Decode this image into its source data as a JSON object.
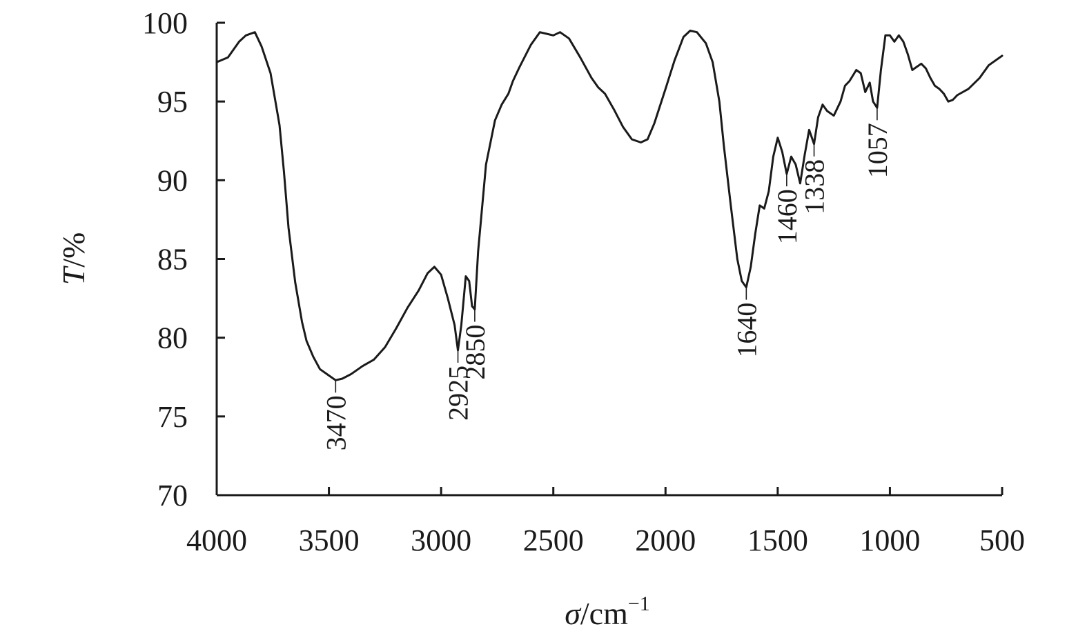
{
  "chart_data": {
    "type": "line",
    "title": "",
    "xlabel": {
      "symbol": "σ",
      "unit": "/cm",
      "exponent": "−1"
    },
    "ylabel": {
      "symbol": "T",
      "unit": "/%"
    },
    "xlim": [
      4000,
      500
    ],
    "ylim": [
      70,
      100
    ],
    "x_reversed": true,
    "grid": false,
    "x_ticks": [
      "4000",
      "3500",
      "3000",
      "2500",
      "2000",
      "1500",
      "1000",
      "500"
    ],
    "y_ticks": [
      "70",
      "75",
      "80",
      "85",
      "90",
      "95",
      "100"
    ],
    "series": [
      {
        "x": [
          4000,
          3950,
          3900,
          3870,
          3830,
          3800,
          3760,
          3720,
          3700,
          3680,
          3650,
          3620,
          3600,
          3570,
          3540,
          3500,
          3470,
          3440,
          3400,
          3350,
          3300,
          3250,
          3200,
          3150,
          3100,
          3060,
          3030,
          3000,
          2970,
          2940,
          2925,
          2910,
          2890,
          2875,
          2862,
          2850,
          2835,
          2800,
          2760,
          2730,
          2700,
          2680,
          2650,
          2600,
          2560,
          2530,
          2500,
          2470,
          2430,
          2380,
          2330,
          2300,
          2270,
          2230,
          2190,
          2150,
          2110,
          2080,
          2050,
          2000,
          1960,
          1920,
          1890,
          1860,
          1820,
          1790,
          1760,
          1740,
          1710,
          1680,
          1660,
          1640,
          1620,
          1600,
          1580,
          1560,
          1540,
          1520,
          1500,
          1480,
          1460,
          1440,
          1420,
          1400,
          1380,
          1360,
          1338,
          1320,
          1300,
          1280,
          1250,
          1220,
          1200,
          1180,
          1150,
          1130,
          1110,
          1090,
          1075,
          1057,
          1040,
          1020,
          1000,
          980,
          960,
          940,
          920,
          900,
          880,
          860,
          840,
          820,
          800,
          780,
          760,
          740,
          720,
          700,
          650,
          600,
          560,
          500
        ],
        "values": [
          97.5,
          97.8,
          98.8,
          99.2,
          99.4,
          98.5,
          96.8,
          93.5,
          90.5,
          87.0,
          83.5,
          81.0,
          79.8,
          78.8,
          78.0,
          77.6,
          77.3,
          77.4,
          77.7,
          78.2,
          78.6,
          79.4,
          80.6,
          81.9,
          83.0,
          84.1,
          84.5,
          84.0,
          82.5,
          80.8,
          79.2,
          80.8,
          83.9,
          83.6,
          82.0,
          81.8,
          85.5,
          91.0,
          93.8,
          94.8,
          95.5,
          96.3,
          97.2,
          98.6,
          99.4,
          99.3,
          99.2,
          99.4,
          99.0,
          97.8,
          96.5,
          95.9,
          95.5,
          94.5,
          93.4,
          92.6,
          92.4,
          92.6,
          93.6,
          95.8,
          97.6,
          99.1,
          99.5,
          99.4,
          98.7,
          97.5,
          95.0,
          92.2,
          88.5,
          85.0,
          83.6,
          83.2,
          84.5,
          86.6,
          88.4,
          88.2,
          89.3,
          91.5,
          92.7,
          91.8,
          90.4,
          91.5,
          91.0,
          89.8,
          91.6,
          93.2,
          92.3,
          94.0,
          94.8,
          94.4,
          94.1,
          95.0,
          96.0,
          96.3,
          97.0,
          96.8,
          95.6,
          96.2,
          95.0,
          94.6,
          97.0,
          99.2,
          99.2,
          98.8,
          99.2,
          98.8,
          98.0,
          97.0,
          97.2,
          97.4,
          97.1,
          96.5,
          96.0,
          95.8,
          95.5,
          95.0,
          95.1,
          95.4,
          95.8,
          96.5,
          97.3,
          97.9
        ]
      }
    ],
    "annotations": [
      {
        "text": "3470",
        "x": 3470,
        "y": 77.3
      },
      {
        "text": "2925",
        "x": 2925,
        "y": 79.2
      },
      {
        "text": "2850",
        "x": 2850,
        "y": 81.8
      },
      {
        "text": "1640",
        "x": 1640,
        "y": 83.2
      },
      {
        "text": "1460",
        "x": 1460,
        "y": 90.4
      },
      {
        "text": "1338",
        "x": 1338,
        "y": 92.3
      },
      {
        "text": "1057",
        "x": 1057,
        "y": 94.6
      }
    ]
  }
}
